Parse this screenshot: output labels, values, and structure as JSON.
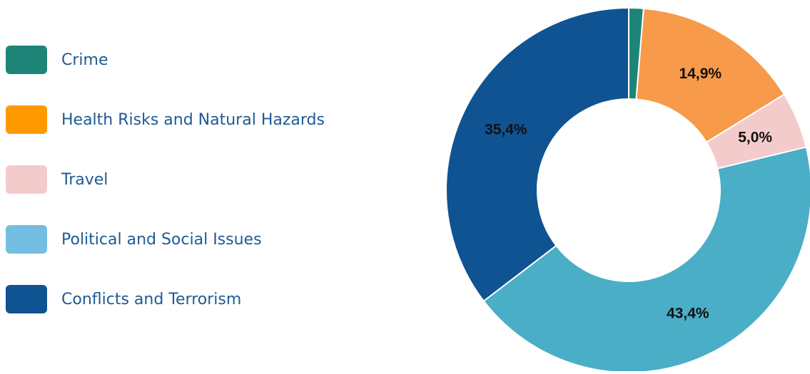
{
  "chart_data": {
    "type": "pie",
    "variant": "donut",
    "categories": [
      "Crime",
      "Health Risks and Natural Hazards",
      "Travel",
      "Political and Social Issues",
      "Conflicts and Terrorism"
    ],
    "values": [
      1.3,
      14.9,
      5.0,
      43.4,
      35.4
    ],
    "data_labels": [
      "",
      "14,9%",
      "5,0%",
      "43,4%",
      "35,4%"
    ],
    "slice_colors": [
      "#1f8478",
      "#f79a4a",
      "#f4cbcb",
      "#4aaec6",
      "#0f5392"
    ],
    "legend_colors": [
      "#1f8478",
      "#ff9900",
      "#f4cbcb",
      "#74bde3",
      "#0f5392"
    ],
    "legend_position": "left"
  },
  "legend": {
    "items": [
      {
        "label": "Crime"
      },
      {
        "label": "Health Risks and Natural Hazards"
      },
      {
        "label": "Travel"
      },
      {
        "label": "Political and Social Issues"
      },
      {
        "label": "Conflicts and Terrorism"
      }
    ]
  }
}
